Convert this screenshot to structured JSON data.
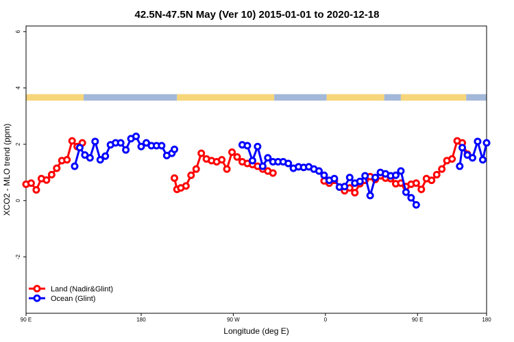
{
  "chart_data": {
    "type": "line",
    "title": "42.5N-47.5N May (Ver 10)   2015-01-01 to 2020-12-18",
    "xlabel": "Longitude (deg E)",
    "ylabel": "XCO2 - MLO trend (ppm)",
    "xlim": [
      -90,
      270
    ],
    "ylim": [
      -4,
      6.2
    ],
    "xticks": [
      {
        "value": -90,
        "label": "90 E"
      },
      {
        "value": 0,
        "label": "180"
      },
      {
        "value": 72,
        "label": "90 W"
      },
      {
        "value": 144,
        "label": "0"
      },
      {
        "value": 216,
        "label": "90 E"
      },
      {
        "value": 270,
        "label": "180"
      }
    ],
    "yticks": [
      {
        "value": -2,
        "label": "-2"
      },
      {
        "value": 0,
        "label": "0"
      },
      {
        "value": 2,
        "label": "2"
      },
      {
        "value": 4,
        "label": "4"
      },
      {
        "value": 6,
        "label": "6"
      }
    ],
    "surface_band": {
      "ymin": 3.55,
      "ymax": 3.78,
      "land_color": "#f7d57a",
      "ocean_color": "#a3b8d9",
      "segments": [
        {
          "from": -90,
          "to": -45,
          "type": "land"
        },
        {
          "from": -45,
          "to": 28,
          "type": "ocean"
        },
        {
          "from": 28,
          "to": 104,
          "type": "land"
        },
        {
          "from": 104,
          "to": 145,
          "type": "ocean"
        },
        {
          "from": 145,
          "to": 190,
          "type": "land"
        },
        {
          "from": 190,
          "to": 203,
          "type": "ocean"
        },
        {
          "from": 203,
          "to": 254,
          "type": "land"
        },
        {
          "from": 254,
          "to": 270,
          "type": "ocean"
        }
      ]
    },
    "series": [
      {
        "name": "Land (Nadir&Glint)",
        "color": "#ff0000",
        "x": [
          -90,
          -86,
          -82,
          -78,
          -74,
          -70,
          -66,
          -62,
          -58,
          -54,
          -50,
          -46,
          26,
          28,
          31,
          35,
          39,
          43,
          47,
          51,
          55,
          59,
          63,
          67,
          71,
          75,
          79,
          83,
          87,
          91,
          95,
          99,
          103,
          143,
          147,
          151,
          155,
          159,
          163,
          167,
          171,
          175,
          179,
          183,
          187,
          191,
          195,
          199,
          203,
          207,
          211,
          215,
          219,
          223,
          227,
          231,
          235,
          239,
          243,
          247,
          251,
          255
        ],
        "y": [
          0.58,
          0.62,
          0.38,
          0.78,
          0.73,
          0.92,
          1.15,
          1.42,
          1.45,
          2.12,
          1.92,
          2.05,
          0.8,
          0.4,
          0.45,
          0.52,
          0.9,
          1.12,
          1.68,
          1.48,
          1.42,
          1.38,
          1.45,
          1.12,
          1.72,
          1.55,
          1.38,
          1.32,
          1.28,
          1.22,
          1.12,
          1.05,
          0.98,
          0.7,
          0.62,
          0.72,
          0.48,
          0.35,
          0.45,
          0.28,
          0.6,
          0.72,
          0.85,
          0.75,
          0.88,
          0.8,
          0.78,
          0.6,
          0.62,
          0.5,
          0.58,
          0.62,
          0.4,
          0.78,
          0.72,
          0.92,
          1.12,
          1.42,
          1.48,
          2.12,
          2.05,
          1.65
        ]
      },
      {
        "name": "Ocean (Glint)",
        "color": "#0000ff",
        "x": [
          -52,
          -48,
          -44,
          -40,
          -36,
          -32,
          -28,
          -24,
          -20,
          -16,
          -12,
          -8,
          -4,
          0,
          4,
          8,
          12,
          16,
          20,
          24,
          26,
          79,
          83,
          87,
          91,
          95,
          99,
          103,
          107,
          111,
          115,
          119,
          123,
          127,
          131,
          135,
          139,
          143,
          147,
          151,
          155,
          159,
          163,
          167,
          171,
          175,
          179,
          183,
          187,
          191,
          195,
          199,
          203,
          207,
          211,
          215,
          249,
          251,
          255,
          259,
          263,
          267,
          270
        ],
        "y": [
          1.22,
          1.88,
          1.62,
          1.52,
          2.1,
          1.45,
          1.58,
          1.98,
          2.05,
          2.05,
          1.8,
          2.2,
          2.28,
          1.92,
          2.05,
          1.95,
          1.95,
          1.95,
          1.6,
          1.68,
          1.82,
          1.98,
          1.95,
          1.42,
          1.92,
          1.22,
          1.52,
          1.38,
          1.38,
          1.38,
          1.32,
          1.15,
          1.2,
          1.18,
          1.2,
          1.12,
          1.05,
          0.9,
          0.72,
          0.78,
          0.48,
          0.5,
          0.82,
          0.62,
          0.68,
          0.88,
          0.18,
          0.82,
          1.0,
          0.95,
          0.88,
          0.9,
          1.05,
          0.3,
          0.1,
          -0.15,
          1.22,
          1.88,
          1.62,
          1.52,
          2.1,
          1.45,
          2.05
        ]
      }
    ],
    "legend": {
      "placement": "bottom-left",
      "items": [
        "Land (Nadir&Glint)",
        "Ocean (Glint)"
      ]
    },
    "grid": false
  }
}
